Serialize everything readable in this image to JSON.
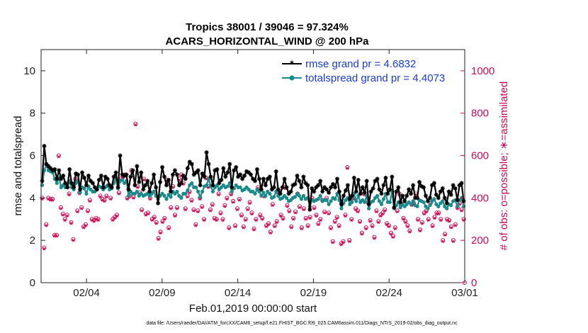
{
  "chart_data": {
    "type": "line",
    "title": [
      "Tropics 38001 / 39046 = 97.324%",
      "ACARS_HORIZONTAL_WIND @ 200 hPa"
    ],
    "xlabel": "Feb.01,2019 00:00:00 start",
    "ylabel": "rmse and totalspread",
    "ylabel_right": "# of obs: o=possible; ∗=assimilated",
    "x_tick_labels": [
      "02/04",
      "02/09",
      "02/14",
      "02/19",
      "02/24",
      "03/01"
    ],
    "x_tick_days": [
      3,
      8,
      13,
      18,
      23,
      28
    ],
    "xlim_days": [
      0,
      28
    ],
    "ylim": [
      0,
      11
    ],
    "y_ticks": [
      0,
      2,
      4,
      6,
      8,
      10
    ],
    "ylim_right": [
      0,
      1100
    ],
    "y_ticks_right": [
      0,
      200,
      400,
      600,
      800,
      1000
    ],
    "series": [
      {
        "name": "rmse",
        "legend": "rmse grand pr = 4.6832",
        "color": "#000000",
        "marker": "star",
        "values": [
          4.8,
          6.45,
          5.6,
          5.5,
          5.4,
          5.3,
          5.35,
          4.9,
          5.3,
          4.9,
          5.05,
          4.7,
          4.5,
          5.35,
          4.7,
          4.5,
          5.15,
          5.1,
          4.4,
          5.2,
          4.95,
          4.6,
          5.05,
          4.8,
          4.7,
          4.5,
          4.4,
          4.85,
          5.05,
          4.5,
          5.0,
          4.9,
          4.6,
          4.5,
          5.0,
          5.2,
          4.5,
          6.0,
          5.1,
          5.05,
          5.1,
          4.4,
          5.0,
          5.3,
          4.6,
          5.5,
          4.75,
          5.2,
          4.4,
          4.6,
          4.8,
          4.3,
          4.7,
          5.1,
          4.5,
          3.75,
          4.75,
          5.45,
          5.0,
          4.6,
          4.85,
          4.3,
          5.1,
          5.3,
          5.1,
          4.6,
          4.7,
          5.05,
          4.9,
          5.4,
          5.7,
          5.6,
          5.1,
          5.2,
          5.3,
          4.6,
          5.15,
          5.0,
          6.15,
          5.6,
          5.0,
          4.6,
          5.3,
          5.35,
          4.7,
          4.85,
          5.4,
          5.0,
          5.2,
          5.6,
          4.5,
          5.3,
          5.45,
          5.0,
          5.1,
          4.9,
          5.05,
          5.25,
          5.2,
          5.1,
          4.9,
          4.8,
          5.35,
          4.9,
          4.4,
          4.9,
          4.6,
          4.9,
          5.0,
          4.4,
          4.5,
          5.25,
          4.4,
          4.2,
          4.5,
          4.9,
          4.5,
          4.2,
          4.3,
          4.6,
          4.65,
          5.05,
          4.8,
          4.5,
          5.0,
          4.7,
          4.6,
          3.45,
          4.45,
          4.3,
          4.5,
          4.6,
          4.8,
          4.3,
          4.5,
          4.4,
          4.25,
          4.5,
          4.65,
          4.5,
          4.9,
          4.3,
          3.7,
          4.1,
          4.35,
          4.6,
          3.95,
          4.1,
          4.95,
          4.3,
          4.85,
          4.2,
          4.5,
          4.25,
          4.8,
          3.7,
          4.3,
          4.45,
          4.8,
          4.9,
          4.4,
          4.2,
          4.6,
          4.95,
          4.2,
          4.4,
          5.0,
          3.55,
          4.3,
          4.5,
          3.8,
          4.1,
          3.85,
          4.1,
          4.4,
          4.2,
          4.6,
          4.0,
          4.0,
          4.75,
          4.55,
          4.5,
          4.1,
          3.85,
          4.0,
          4.6,
          4.7,
          4.15,
          4.0,
          4.3,
          4.45,
          4.0,
          3.75,
          4.3,
          4.15,
          4.6,
          4.45,
          3.9,
          4.6,
          4.7,
          3.85
        ]
      },
      {
        "name": "totalspread",
        "legend": "totalspread grand pr = 4.4073",
        "color": "#1a8a8a",
        "marker": "circle",
        "values": [
          4.6,
          5.3,
          5.55,
          5.3,
          5.25,
          5.2,
          4.9,
          4.7,
          4.95,
          4.5,
          4.6,
          4.5,
          4.5,
          4.8,
          4.5,
          4.4,
          4.7,
          4.8,
          4.25,
          4.5,
          4.45,
          4.2,
          4.55,
          4.4,
          4.3,
          4.3,
          4.4,
          4.55,
          4.5,
          4.4,
          4.5,
          4.6,
          4.4,
          4.45,
          4.7,
          4.9,
          4.45,
          4.8,
          4.85,
          4.7,
          4.8,
          4.1,
          4.3,
          4.2,
          4.2,
          4.3,
          4.1,
          4.2,
          4.1,
          4.15,
          4.2,
          4.1,
          4.2,
          4.3,
          4.1,
          3.95,
          4.1,
          4.2,
          4.1,
          3.95,
          4.15,
          4.05,
          4.3,
          4.2,
          4.3,
          4.1,
          4.0,
          4.2,
          4.2,
          4.35,
          4.6,
          4.7,
          4.5,
          4.5,
          4.3,
          4.05,
          4.3,
          4.55,
          4.6,
          4.9,
          4.55,
          4.3,
          4.5,
          4.6,
          4.4,
          4.5,
          4.6,
          4.5,
          4.55,
          4.7,
          4.3,
          4.45,
          4.6,
          4.5,
          4.5,
          4.35,
          4.4,
          4.5,
          4.4,
          4.3,
          4.3,
          4.2,
          4.4,
          4.3,
          4.1,
          4.25,
          4.1,
          4.3,
          4.2,
          4.0,
          4.05,
          4.3,
          4.1,
          3.95,
          4.0,
          4.1,
          4.0,
          3.85,
          3.9,
          4.0,
          4.05,
          4.2,
          4.1,
          3.95,
          4.1,
          3.95,
          4.0,
          3.6,
          3.9,
          3.85,
          3.9,
          3.95,
          4.1,
          3.85,
          3.9,
          3.9,
          3.7,
          3.85,
          4.0,
          3.95,
          4.2,
          3.9,
          3.5,
          3.75,
          3.9,
          4.0,
          3.7,
          3.8,
          4.2,
          3.85,
          4.1,
          3.8,
          3.9,
          3.8,
          4.1,
          3.5,
          3.8,
          3.85,
          4.0,
          4.1,
          3.85,
          3.7,
          3.95,
          4.2,
          3.8,
          3.8,
          4.3,
          3.5,
          3.65,
          3.8,
          3.55,
          3.7,
          3.6,
          3.7,
          3.8,
          3.7,
          3.85,
          3.65,
          3.6,
          3.9,
          3.85,
          3.8,
          3.6,
          3.5,
          3.65,
          3.85,
          3.95,
          3.7,
          3.6,
          3.75,
          3.85,
          3.6,
          3.5,
          3.7,
          3.65,
          3.85,
          3.9,
          3.6,
          3.9,
          4.0,
          3.6
        ]
      },
      {
        "name": "obs_possible",
        "axis": "right",
        "color": "#cc0a55",
        "marker": "circle-open",
        "values": [
          400,
          165,
          275,
          400,
          395,
          395,
          225,
          225,
          600,
          355,
          325,
          300,
          320,
          420,
          285,
          205,
          490,
          340,
          425,
          355,
          265,
          275,
          340,
          390,
          300,
          295,
          305,
          300,
          410,
          395,
          390,
          410,
          460,
          400,
          300,
          310,
          320,
          425,
          490,
          500,
          510,
          400,
          410,
          530,
          405,
          750,
          455,
          425,
          345,
          490,
          325,
          330,
          400,
          300,
          310,
          285,
          210,
          240,
          290,
          305,
          485,
          260,
          355,
          455,
          320,
          355,
          490,
          510,
          470,
          350,
          410,
          430,
          390,
          345,
          275,
          340,
          400,
          360,
          300,
          495,
          455,
          345,
          370,
          305,
          300,
          420,
          330,
          300,
          365,
          400,
          260,
          420,
          385,
          270,
          350,
          395,
          320,
          265,
          300,
          350,
          380,
          330,
          255,
          300,
          450,
          320,
          305,
          410,
          270,
          280,
          240,
          370,
          270,
          290,
          430,
          320,
          305,
          450,
          365,
          340,
          265,
          305,
          335,
          420,
          360,
          260,
          350,
          305,
          270,
          310,
          400,
          355,
          320,
          280,
          300,
          390,
          335,
          400,
          330,
          260,
          195,
          290,
          310,
          270,
          185,
          195,
          320,
          545,
          200,
          300,
          400,
          350,
          340,
          290,
          235,
          420,
          260,
          380,
          295,
          270,
          215,
          340,
          290,
          320,
          330,
          345,
          280,
          270,
          235,
          220,
          260,
          340,
          420,
          370,
          305,
          290,
          270,
          245,
          370,
          375,
          420,
          300,
          250,
          285,
          330,
          340,
          300,
          375,
          270,
          310,
          330,
          330,
          300,
          200,
          230,
          300,
          295,
          265,
          200,
          275,
          355,
          375,
          345,
          300
        ]
      },
      {
        "name": "obs_assimilated",
        "axis": "right",
        "color": "#cc0a55",
        "marker": "star",
        "values": [
          395,
          160,
          270,
          395,
          390,
          390,
          220,
          220,
          595,
          350,
          320,
          295,
          315,
          415,
          280,
          200,
          485,
          335,
          420,
          350,
          260,
          270,
          335,
          385,
          295,
          290,
          300,
          295,
          405,
          390,
          385,
          405,
          455,
          395,
          295,
          305,
          315,
          420,
          485,
          495,
          505,
          395,
          405,
          525,
          400,
          745,
          450,
          420,
          340,
          485,
          320,
          325,
          395,
          295,
          305,
          280,
          205,
          235,
          285,
          300,
          480,
          255,
          350,
          450,
          315,
          350,
          485,
          505,
          465,
          345,
          405,
          425,
          385,
          340,
          270,
          335,
          395,
          355,
          295,
          490,
          450,
          340,
          365,
          300,
          295,
          415,
          325,
          295,
          360,
          395,
          255,
          415,
          380,
          265,
          345,
          390,
          315,
          260,
          295,
          345,
          375,
          325,
          250,
          295,
          445,
          315,
          300,
          405,
          265,
          275,
          235,
          365,
          265,
          285,
          425,
          315,
          300,
          445,
          360,
          335,
          260,
          300,
          330,
          415,
          355,
          255,
          345,
          300,
          265,
          305,
          395,
          350,
          315,
          275,
          295,
          385,
          330,
          395,
          325,
          255,
          190,
          285,
          305,
          265,
          180,
          190,
          315,
          540,
          195,
          295,
          395,
          345,
          335,
          285,
          230,
          415,
          255,
          375,
          290,
          265,
          210,
          335,
          285,
          315,
          325,
          340,
          275,
          265,
          230,
          215,
          255,
          335,
          415,
          365,
          300,
          285,
          265,
          240,
          365,
          370,
          415,
          295,
          245,
          280,
          325,
          335,
          295,
          370,
          265,
          305,
          325,
          325,
          295,
          195,
          225,
          295,
          290,
          260,
          195,
          270,
          350,
          370,
          340,
          295
        ]
      }
    ],
    "legend_position": "top-right",
    "footnote": "data file: /Users/raeder/DAI/ATM_forcXX/CAM6_setup/f.e21.FHIST_BGC.f09_025.CAM6assim.011/Diags_NTrS_2019-02/obs_diag_output.nc"
  }
}
